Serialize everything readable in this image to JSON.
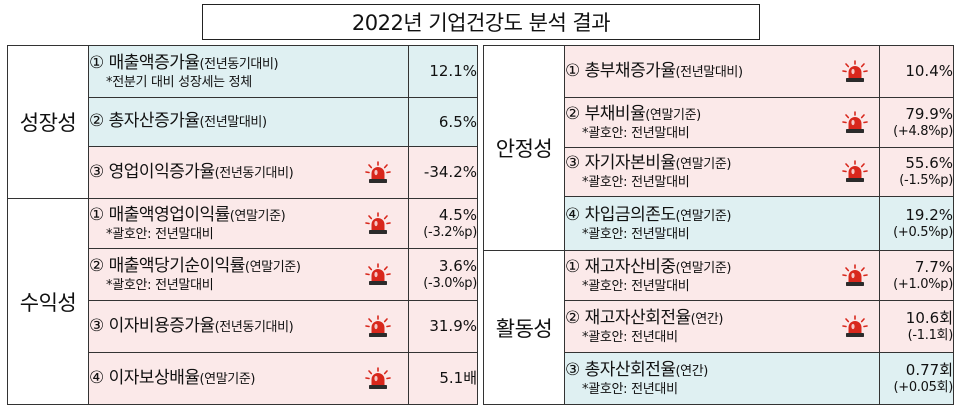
{
  "title": "2022년 기업건강도 분석 결과",
  "colors": {
    "blue_bg": "#dff0f2",
    "pink_bg": "#fbe9e9",
    "siren": "#d8271c"
  },
  "left": {
    "growth": {
      "category": "성장성",
      "items": [
        {
          "name": "① 매출액증가율",
          "qualifier": "(전년동기대비)",
          "note": "*전분기 대비 성장세는 정체",
          "value": "12.1%",
          "sub": "",
          "siren": false
        },
        {
          "name": "② 총자산증가율",
          "qualifier": "(전년말대비)",
          "note": "",
          "value": "6.5%",
          "sub": "",
          "siren": false
        },
        {
          "name": "③ 영업이익증가율",
          "qualifier": "(전년동기대비)",
          "note": "",
          "value": "-34.2%",
          "sub": "",
          "siren": true
        }
      ]
    },
    "profitability": {
      "category": "수익성",
      "items": [
        {
          "name": "① 매출액영업이익률",
          "qualifier": "(연말기준)",
          "note": "*괄호안: 전년말대비",
          "value": "4.5%",
          "sub": "(-3.2%p)",
          "siren": true
        },
        {
          "name": "② 매출액당기순이익률",
          "qualifier": "(연말기준)",
          "note": "*괄호안: 전년말대비",
          "value": "3.6%",
          "sub": "(-3.0%p)",
          "siren": true
        },
        {
          "name": "③ 이자비용증가율",
          "qualifier": "(전년동기대비)",
          "note": "",
          "value": "31.9%",
          "sub": "",
          "siren": true
        },
        {
          "name": "④ 이자보상배율",
          "qualifier": "(연말기준)",
          "note": "",
          "value": "5.1배",
          "sub": "",
          "siren": true
        }
      ]
    }
  },
  "right": {
    "stability": {
      "category": "안정성",
      "items": [
        {
          "name": "① 총부채증가율",
          "qualifier": "(전년말대비)",
          "note": "",
          "value": "10.4%",
          "sub": "",
          "siren": true
        },
        {
          "name": "② 부채비율",
          "qualifier": "(연말기준)",
          "note": "*괄호안: 전년말대비",
          "value": "79.9%",
          "sub": "(+4.8%p)",
          "siren": true
        },
        {
          "name": "③ 자기자본비율",
          "qualifier": "(연말기준)",
          "note": "*괄호안: 전년말대비",
          "value": "55.6%",
          "sub": "(-1.5%p)",
          "siren": true
        },
        {
          "name": "④ 차입금의존도",
          "qualifier": "(연말기준)",
          "note": "*괄호안: 전년말대비",
          "value": "19.2%",
          "sub": "(+0.5%p)",
          "siren": false
        }
      ]
    },
    "activity": {
      "category": "활동성",
      "items": [
        {
          "name": "① 재고자산비중",
          "qualifier": "(연말기준)",
          "note": "*괄호안: 전년말대비",
          "value": "7.7%",
          "sub": "(+1.0%p)",
          "siren": true
        },
        {
          "name": "② 재고자산회전율",
          "qualifier": "(연간)",
          "note": "*괄호안: 전년대비",
          "value": "10.6회",
          "sub": "(-1.1회)",
          "siren": true
        },
        {
          "name": "③ 총자산회전율",
          "qualifier": "(연간)",
          "note": "*괄호안: 전년대비",
          "value": "0.77회",
          "sub": "(+0.05회)",
          "siren": false
        }
      ]
    }
  }
}
